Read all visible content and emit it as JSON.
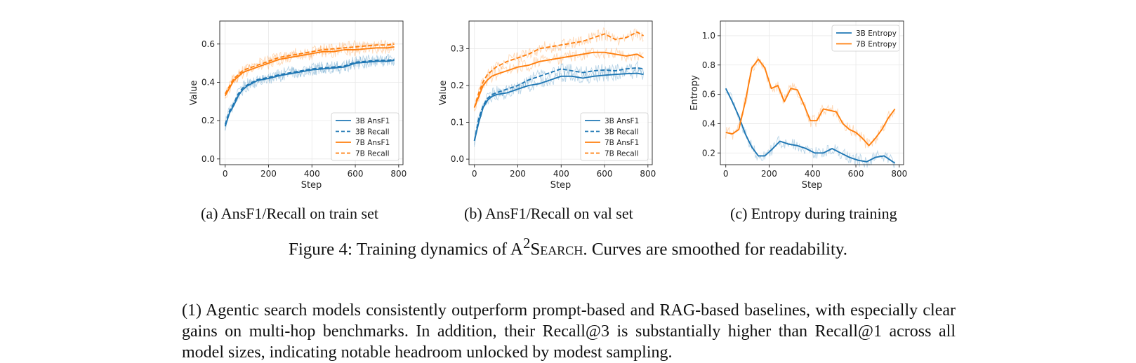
{
  "chart_data": [
    {
      "type": "line",
      "id": "a",
      "xlabel": "Step",
      "ylabel": "Value",
      "xlim": [
        -25,
        820
      ],
      "ylim": [
        -0.03,
        0.72
      ],
      "xticks": [
        0,
        200,
        400,
        600,
        800
      ],
      "yticks": [
        0.0,
        0.2,
        0.4,
        0.6
      ],
      "ytick_labels": [
        "0.0",
        "0.2",
        "0.4",
        "0.6"
      ],
      "grid": true,
      "legend_position": "lower-right",
      "smoothing": "raw curve faint, smoothed curve solid",
      "series": [
        {
          "name": "3B AnsF1",
          "color": "#1f77b4",
          "dash": false,
          "x": [
            0,
            20,
            40,
            60,
            80,
            100,
            150,
            200,
            250,
            300,
            350,
            400,
            450,
            500,
            550,
            600,
            650,
            700,
            750,
            780
          ],
          "y": [
            0.17,
            0.24,
            0.28,
            0.33,
            0.36,
            0.38,
            0.41,
            0.42,
            0.435,
            0.445,
            0.455,
            0.465,
            0.47,
            0.475,
            0.48,
            0.5,
            0.505,
            0.51,
            0.51,
            0.515
          ]
        },
        {
          "name": "3B Recall",
          "color": "#1f77b4",
          "dash": true,
          "x": [
            0,
            20,
            40,
            60,
            80,
            100,
            150,
            200,
            250,
            300,
            350,
            400,
            450,
            500,
            550,
            600,
            650,
            700,
            750,
            780
          ],
          "y": [
            0.18,
            0.25,
            0.29,
            0.34,
            0.37,
            0.385,
            0.415,
            0.425,
            0.44,
            0.45,
            0.46,
            0.47,
            0.475,
            0.48,
            0.485,
            0.505,
            0.51,
            0.515,
            0.515,
            0.52
          ]
        },
        {
          "name": "7B AnsF1",
          "color": "#ff7f0e",
          "dash": false,
          "x": [
            0,
            20,
            40,
            60,
            80,
            100,
            150,
            200,
            250,
            300,
            350,
            400,
            450,
            500,
            550,
            600,
            650,
            700,
            750,
            780
          ],
          "y": [
            0.33,
            0.37,
            0.41,
            0.43,
            0.45,
            0.46,
            0.48,
            0.5,
            0.52,
            0.53,
            0.54,
            0.55,
            0.56,
            0.56,
            0.57,
            0.57,
            0.575,
            0.58,
            0.58,
            0.585
          ]
        },
        {
          "name": "7B Recall",
          "color": "#ff7f0e",
          "dash": true,
          "x": [
            0,
            20,
            40,
            60,
            80,
            100,
            150,
            200,
            250,
            300,
            350,
            400,
            450,
            500,
            550,
            600,
            650,
            700,
            750,
            780
          ],
          "y": [
            0.34,
            0.38,
            0.42,
            0.44,
            0.46,
            0.47,
            0.49,
            0.51,
            0.53,
            0.54,
            0.55,
            0.56,
            0.57,
            0.575,
            0.58,
            0.585,
            0.59,
            0.595,
            0.595,
            0.6
          ]
        }
      ]
    },
    {
      "type": "line",
      "id": "b",
      "xlabel": "Step",
      "ylabel": "Value",
      "xlim": [
        -25,
        820
      ],
      "ylim": [
        -0.015,
        0.375
      ],
      "xticks": [
        0,
        200,
        400,
        600,
        800
      ],
      "yticks": [
        0.0,
        0.1,
        0.2,
        0.3
      ],
      "ytick_labels": [
        "0.0",
        "0.1",
        "0.2",
        "0.3"
      ],
      "grid": true,
      "legend_position": "lower-right",
      "series": [
        {
          "name": "3B AnsF1",
          "color": "#1f77b4",
          "dash": false,
          "x": [
            0,
            20,
            40,
            60,
            80,
            100,
            150,
            200,
            250,
            300,
            350,
            400,
            450,
            500,
            550,
            600,
            650,
            700,
            750,
            780
          ],
          "y": [
            0.05,
            0.1,
            0.14,
            0.16,
            0.17,
            0.175,
            0.18,
            0.19,
            0.2,
            0.205,
            0.215,
            0.225,
            0.225,
            0.22,
            0.225,
            0.228,
            0.23,
            0.232,
            0.233,
            0.23
          ]
        },
        {
          "name": "3B Recall",
          "color": "#1f77b4",
          "dash": true,
          "x": [
            0,
            20,
            40,
            60,
            80,
            100,
            150,
            200,
            250,
            300,
            350,
            400,
            450,
            500,
            550,
            600,
            650,
            700,
            750,
            780
          ],
          "y": [
            0.05,
            0.11,
            0.145,
            0.165,
            0.175,
            0.18,
            0.19,
            0.2,
            0.215,
            0.225,
            0.235,
            0.245,
            0.24,
            0.235,
            0.24,
            0.242,
            0.24,
            0.245,
            0.248,
            0.245
          ]
        },
        {
          "name": "7B AnsF1",
          "color": "#ff7f0e",
          "dash": false,
          "x": [
            0,
            20,
            40,
            60,
            80,
            100,
            150,
            200,
            250,
            300,
            350,
            400,
            450,
            500,
            550,
            600,
            650,
            700,
            750,
            780
          ],
          "y": [
            0.14,
            0.17,
            0.2,
            0.215,
            0.225,
            0.23,
            0.24,
            0.25,
            0.255,
            0.265,
            0.27,
            0.275,
            0.28,
            0.285,
            0.29,
            0.29,
            0.285,
            0.28,
            0.285,
            0.275
          ]
        },
        {
          "name": "7B Recall",
          "color": "#ff7f0e",
          "dash": true,
          "x": [
            0,
            20,
            40,
            60,
            80,
            100,
            150,
            200,
            250,
            300,
            350,
            400,
            450,
            500,
            550,
            600,
            650,
            700,
            750,
            780
          ],
          "y": [
            0.14,
            0.18,
            0.21,
            0.23,
            0.24,
            0.25,
            0.265,
            0.275,
            0.285,
            0.3,
            0.305,
            0.31,
            0.315,
            0.32,
            0.33,
            0.34,
            0.325,
            0.33,
            0.345,
            0.335
          ]
        }
      ]
    },
    {
      "type": "line",
      "id": "c",
      "xlabel": "Step",
      "ylabel": "Entropy",
      "xlim": [
        -25,
        820
      ],
      "ylim": [
        0.12,
        1.1
      ],
      "xticks": [
        0,
        200,
        400,
        600,
        800
      ],
      "yticks": [
        0.2,
        0.4,
        0.6,
        0.8,
        1.0
      ],
      "ytick_labels": [
        "0.2",
        "0.4",
        "0.6",
        "0.8",
        "1.0"
      ],
      "grid": true,
      "legend_position": "top-right",
      "series": [
        {
          "name": "3B Entropy",
          "color": "#1f77b4",
          "dash": false,
          "x": [
            0,
            30,
            60,
            90,
            120,
            150,
            180,
            210,
            250,
            290,
            330,
            370,
            410,
            450,
            490,
            530,
            570,
            610,
            650,
            690,
            730,
            760,
            780
          ],
          "y": [
            0.64,
            0.55,
            0.45,
            0.33,
            0.24,
            0.18,
            0.18,
            0.22,
            0.28,
            0.26,
            0.25,
            0.23,
            0.2,
            0.2,
            0.23,
            0.2,
            0.17,
            0.15,
            0.14,
            0.17,
            0.18,
            0.15,
            0.13
          ]
        },
        {
          "name": "7B Entropy",
          "color": "#ff7f0e",
          "dash": false,
          "x": [
            0,
            30,
            60,
            90,
            120,
            150,
            180,
            210,
            240,
            270,
            300,
            330,
            360,
            390,
            420,
            450,
            480,
            510,
            540,
            570,
            600,
            630,
            660,
            690,
            720,
            750,
            780
          ],
          "y": [
            0.34,
            0.33,
            0.36,
            0.55,
            0.78,
            0.84,
            0.78,
            0.64,
            0.66,
            0.55,
            0.64,
            0.63,
            0.53,
            0.42,
            0.42,
            0.5,
            0.49,
            0.48,
            0.4,
            0.36,
            0.34,
            0.3,
            0.25,
            0.3,
            0.36,
            0.44,
            0.5
          ]
        }
      ]
    }
  ],
  "captions": {
    "a": "(a) AnsF1/Recall on train set",
    "b": "(b) AnsF1/Recall on val set",
    "c": "(c) Entropy during training"
  },
  "figure_caption": {
    "prefix": "Figure 4: Training dynamics of A",
    "sup": "2",
    "name": "Search",
    "suffix": ". Curves are smoothed for readability."
  },
  "paragraph": "(1) Agentic search models consistently outperform prompt-based and RAG-based baselines, with especially clear gains on multi-hop benchmarks. In addition, their Recall@3 is substantially higher than Recall@1 across all model sizes, indicating notable headroom unlocked by modest sampling."
}
